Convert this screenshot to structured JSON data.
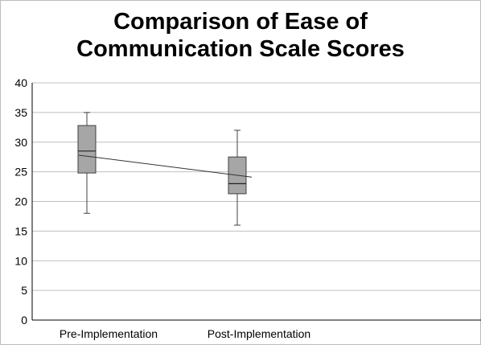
{
  "chart_data": {
    "type": "boxplot",
    "title_lines": [
      "Comparison of Ease of",
      "Communication Scale Scores"
    ],
    "xlabel": "",
    "ylabel": "",
    "ylim": [
      0,
      40
    ],
    "yticks": [
      0,
      5,
      10,
      15,
      20,
      25,
      30,
      35,
      40
    ],
    "grid": true,
    "legend": "none",
    "categories": [
      "Pre-Implementation",
      "Post-Implementation"
    ],
    "boxes": [
      {
        "category": "Pre-Implementation",
        "min": 18,
        "q1": 24.8,
        "median": 28.5,
        "q3": 32.8,
        "max": 35,
        "mean": 27.8
      },
      {
        "category": "Post-Implementation",
        "min": 16,
        "q1": 21.3,
        "median": 23,
        "q3": 27.5,
        "max": 32,
        "mean": 24.1
      }
    ],
    "mean_line": true,
    "colors": {
      "box_fill": "#a6a6a6",
      "box_stroke": "#404040",
      "grid": "#bfbfbf",
      "axis": "#000000"
    }
  }
}
